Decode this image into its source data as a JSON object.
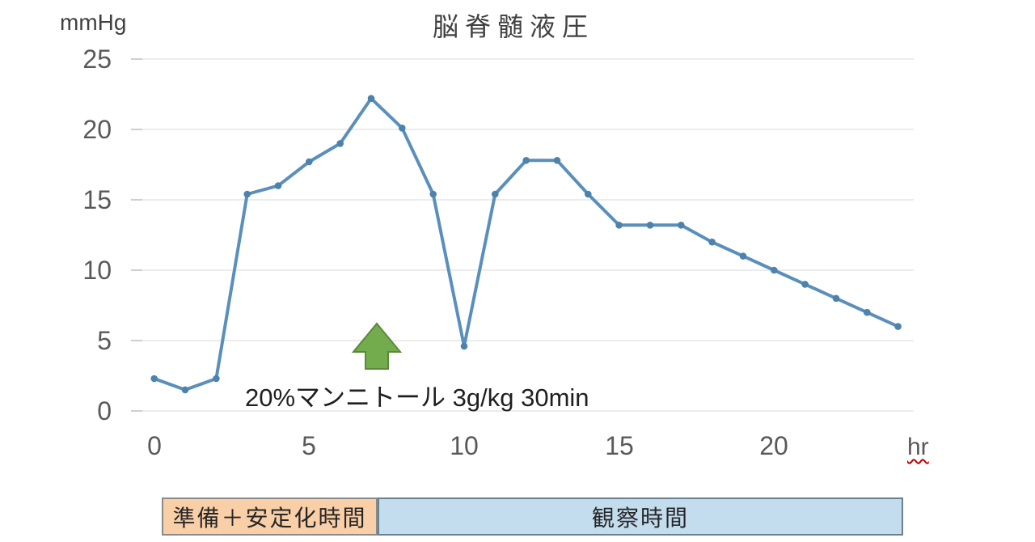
{
  "chart_data": {
    "type": "line",
    "title": "脳脊髄液圧",
    "y_axis_unit": "mmHg",
    "x_axis_unit": "hr",
    "xlabel": "hr",
    "ylabel": "mmHg",
    "ylim": [
      0,
      25
    ],
    "xlim": [
      0,
      24
    ],
    "yticks": [
      0,
      5,
      10,
      15,
      20,
      25
    ],
    "xticks": [
      0,
      5,
      10,
      15,
      20
    ],
    "grid": "horizontal",
    "legend": "none",
    "line_color": "#5a8fbc",
    "marker_color": "#4d82ad",
    "gridline_color": "#d9d9d9",
    "tick_mark_color": "#bfbfbf",
    "x": [
      0,
      1,
      2,
      3,
      4,
      5,
      6,
      7,
      8,
      9,
      10,
      11,
      12,
      13,
      14,
      15,
      16,
      17,
      18,
      19,
      20,
      21,
      22,
      23,
      24
    ],
    "values": [
      2.3,
      1.5,
      2.3,
      15.4,
      16,
      17.7,
      19,
      22.2,
      20.1,
      15.4,
      4.6,
      15.4,
      17.8,
      17.8,
      15.4,
      13.2,
      13.2,
      13.2,
      12,
      11,
      10,
      9,
      8,
      7,
      6
    ],
    "annotation": {
      "text": "20%マンニトール 3g/kg 30min",
      "arrow_shape": "block-arrow-up",
      "arrow_color": "#73ac4c",
      "arrow_border_color": "#5a8a38",
      "arrow_at_hour": 7.2
    }
  },
  "phases": [
    {
      "label": "準備＋安定化時間",
      "fill": "#f9cfa7",
      "border": "#8a8a8a"
    },
    {
      "label": "観察時間",
      "fill": "#c3dcee",
      "border": "#69808f"
    }
  ]
}
